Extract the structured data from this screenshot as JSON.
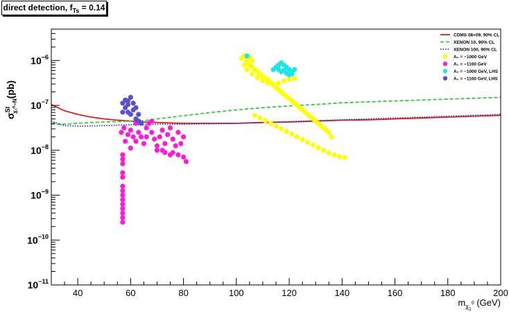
{
  "chart_data": {
    "type": "scatter",
    "title_main": "direct detection, f",
    "title_sub": "Ts",
    "title_tail": " = 0.14",
    "xlabel_main": "m",
    "xlabel_sub1": "χ",
    "xlabel_sub2": "1",
    "xlabel_sup": "0",
    "xlabel_tail": " (GeV)",
    "ylabel_main": "σ",
    "ylabel_sup": "SI",
    "ylabel_sub": "χ₁⁰−N",
    "ylabel_tail": "(pb)",
    "xlim": [
      30,
      200
    ],
    "ylim_log10": [
      -11,
      -5.3
    ],
    "x_ticks": [
      40,
      60,
      80,
      100,
      120,
      140,
      160,
      180,
      200
    ],
    "y_tick_labels": [
      {
        "base": "10",
        "exp": "−6",
        "value": -6
      },
      {
        "base": "10",
        "exp": "−7",
        "value": -7
      },
      {
        "base": "10",
        "exp": "−8",
        "value": -8
      },
      {
        "base": "10",
        "exp": "−9",
        "value": -9
      },
      {
        "base": "10",
        "exp": "−10",
        "value": -10
      },
      {
        "base": "10",
        "exp": "−11",
        "value": -11
      }
    ],
    "y_scale": "log",
    "grid": false,
    "legend_placement": "top-right",
    "series": [
      {
        "name": "CDMS 08+09, 90% CL",
        "kind": "line",
        "style": "solid",
        "color": "#e11a1a",
        "x": [
          30,
          35,
          40,
          45,
          50,
          55,
          60,
          65,
          70,
          80,
          90,
          100,
          110,
          120,
          130,
          140,
          150,
          160,
          170,
          180,
          190,
          200
        ],
        "log10y": [
          -6.98,
          -7.12,
          -7.2,
          -7.26,
          -7.3,
          -7.33,
          -7.35,
          -7.37,
          -7.38,
          -7.4,
          -7.4,
          -7.4,
          -7.38,
          -7.37,
          -7.35,
          -7.33,
          -7.32,
          -7.3,
          -7.28,
          -7.26,
          -7.24,
          -7.22
        ]
      },
      {
        "name": "XENON 10, 90% CL",
        "kind": "line",
        "style": "dashed",
        "color": "#2ecc2e",
        "x": [
          30,
          35,
          40,
          45,
          50,
          55,
          60,
          65,
          70,
          80,
          90,
          100,
          110,
          120,
          130,
          140,
          150,
          160,
          170,
          180,
          190,
          200
        ],
        "log10y": [
          -7.42,
          -7.42,
          -7.4,
          -7.38,
          -7.37,
          -7.36,
          -7.35,
          -7.34,
          -7.3,
          -7.23,
          -7.16,
          -7.1,
          -7.05,
          -7.01,
          -6.98,
          -6.94,
          -6.92,
          -6.9,
          -6.88,
          -6.86,
          -6.84,
          -6.82
        ]
      },
      {
        "name": "XENON 100, 90% CL",
        "kind": "line",
        "style": "dotted",
        "color": "#3333cc",
        "x": [
          30,
          35,
          40,
          45,
          50,
          55,
          60,
          65,
          70,
          80,
          90,
          100,
          110,
          120,
          130,
          140,
          150,
          160,
          170,
          180,
          190,
          200
        ],
        "log10y": [
          -7.35,
          -7.45,
          -7.46,
          -7.46,
          -7.45,
          -7.44,
          -7.43,
          -7.43,
          -7.42,
          -7.42,
          -7.41,
          -7.4,
          -7.38,
          -7.36,
          -7.34,
          -7.32,
          -7.3,
          -7.28,
          -7.26,
          -7.24,
          -7.22,
          -7.2
        ]
      },
      {
        "name": "A₀ = −1000 GeV",
        "kind": "points",
        "color": "#ffff00",
        "points": [
          [
            103,
            -5.9
          ],
          [
            104,
            -6.0
          ],
          [
            105,
            -6.1
          ],
          [
            107,
            -6.2
          ],
          [
            109,
            -6.3
          ],
          [
            111,
            -6.4
          ],
          [
            113,
            -6.5
          ],
          [
            115,
            -6.6
          ],
          [
            117,
            -6.7
          ],
          [
            119,
            -6.8
          ],
          [
            121,
            -6.9
          ],
          [
            123,
            -7.0
          ],
          [
            125,
            -7.1
          ],
          [
            127,
            -7.2
          ],
          [
            129,
            -7.3
          ],
          [
            131,
            -7.4
          ],
          [
            133,
            -7.5
          ],
          [
            135,
            -7.6
          ],
          [
            136,
            -7.7
          ],
          [
            104,
            -6.05
          ],
          [
            106,
            -6.15
          ],
          [
            108,
            -6.25
          ],
          [
            110,
            -6.35
          ],
          [
            112,
            -6.45
          ],
          [
            114,
            -6.55
          ],
          [
            116,
            -6.65
          ],
          [
            118,
            -6.75
          ],
          [
            120,
            -6.85
          ],
          [
            122,
            -6.95
          ],
          [
            124,
            -7.05
          ],
          [
            126,
            -7.15
          ],
          [
            128,
            -7.25
          ],
          [
            130,
            -7.35
          ],
          [
            132,
            -7.45
          ],
          [
            134,
            -7.55
          ],
          [
            107,
            -7.22
          ],
          [
            109,
            -7.28
          ],
          [
            111,
            -7.34
          ],
          [
            113,
            -7.4
          ],
          [
            115,
            -7.46
          ],
          [
            117,
            -7.52
          ],
          [
            119,
            -7.58
          ],
          [
            121,
            -7.64
          ],
          [
            123,
            -7.7
          ],
          [
            125,
            -7.76
          ],
          [
            127,
            -7.82
          ],
          [
            129,
            -7.88
          ],
          [
            131,
            -7.94
          ],
          [
            133,
            -8.0
          ],
          [
            135,
            -8.06
          ],
          [
            137,
            -8.1
          ],
          [
            139,
            -8.14
          ],
          [
            141,
            -8.16
          ],
          [
            104,
            -6.2
          ],
          [
            106,
            -6.3
          ],
          [
            108,
            -6.38
          ],
          [
            110,
            -6.45
          ],
          [
            112,
            -6.5
          ],
          [
            114,
            -6.52
          ],
          [
            116,
            -6.5
          ],
          [
            118,
            -6.45
          ],
          [
            120,
            -6.42
          ],
          [
            122,
            -6.4
          ],
          [
            110,
            -6.4
          ],
          [
            112,
            -6.42
          ],
          [
            103,
            -6.1
          ],
          [
            102,
            -5.95
          ],
          [
            105,
            -5.92
          ],
          [
            106,
            -6.0
          ]
        ]
      },
      {
        "name": "A₀ = −1100 GeV",
        "kind": "points",
        "color": "#ff1ad9",
        "points": [
          [
            57,
            -9.6
          ],
          [
            57,
            -9.5
          ],
          [
            57,
            -9.4
          ],
          [
            57,
            -9.3
          ],
          [
            57,
            -9.2
          ],
          [
            57,
            -9.1
          ],
          [
            57,
            -9.0
          ],
          [
            57,
            -8.9
          ],
          [
            57,
            -8.8
          ],
          [
            57,
            -8.6
          ],
          [
            57,
            -8.5
          ],
          [
            57,
            -8.3
          ],
          [
            57,
            -8.2
          ],
          [
            57,
            -8.1
          ],
          [
            56.5,
            -7.6
          ],
          [
            57.5,
            -7.5
          ],
          [
            59,
            -7.65
          ],
          [
            60,
            -7.55
          ],
          [
            61,
            -7.7
          ],
          [
            58,
            -7.8
          ],
          [
            60,
            -7.95
          ],
          [
            62,
            -7.8
          ],
          [
            63,
            -7.6
          ],
          [
            64,
            -7.7
          ],
          [
            65,
            -7.85
          ],
          [
            66,
            -7.5
          ],
          [
            67,
            -7.4
          ],
          [
            68,
            -7.35
          ],
          [
            68,
            -7.6
          ],
          [
            69,
            -7.75
          ],
          [
            70,
            -7.9
          ],
          [
            71,
            -7.7
          ],
          [
            72,
            -7.55
          ],
          [
            72,
            -8.0
          ],
          [
            73,
            -7.85
          ],
          [
            74,
            -7.65
          ],
          [
            75,
            -7.5
          ],
          [
            76,
            -7.75
          ],
          [
            76,
            -8.05
          ],
          [
            77,
            -7.9
          ],
          [
            78,
            -7.6
          ],
          [
            78,
            -8.1
          ],
          [
            79,
            -7.85
          ],
          [
            80,
            -7.7
          ],
          [
            80,
            -8.15
          ],
          [
            81,
            -8.25
          ],
          [
            73,
            -8.05
          ],
          [
            75,
            -8.1
          ],
          [
            70,
            -8.0
          ],
          [
            66,
            -7.7
          ],
          [
            62,
            -7.4
          ]
        ]
      },
      {
        "name": "A₀ = −1000 GeV, LHS",
        "kind": "points",
        "color": "#1ae6e6",
        "points": [
          [
            104,
            -5.9
          ],
          [
            115,
            -6.15
          ],
          [
            116,
            -6.1
          ],
          [
            117,
            -6.05
          ],
          [
            118,
            -6.1
          ],
          [
            119,
            -6.15
          ],
          [
            120,
            -6.2
          ],
          [
            121,
            -6.3
          ],
          [
            116,
            -6.2
          ],
          [
            118,
            -6.22
          ],
          [
            117,
            -6.25
          ],
          [
            119,
            -6.28
          ],
          [
            120,
            -6.32
          ],
          [
            121,
            -6.25
          ],
          [
            122,
            -6.2
          ],
          [
            114,
            -6.2
          ]
        ]
      },
      {
        "name": "A₀ = −1100 GeV, LHS",
        "kind": "points",
        "color": "#5a4fd0",
        "points": [
          [
            57,
            -6.95
          ],
          [
            58,
            -6.88
          ],
          [
            59,
            -6.9
          ],
          [
            60,
            -6.82
          ],
          [
            61,
            -6.95
          ],
          [
            62,
            -7.05
          ],
          [
            58,
            -7.05
          ],
          [
            59,
            -7.15
          ],
          [
            61,
            -7.1
          ],
          [
            63,
            -7.2
          ],
          [
            60,
            -7.2
          ],
          [
            57,
            -7.15
          ],
          [
            62,
            -7.3
          ],
          [
            63,
            -7.35
          ],
          [
            64,
            -7.4
          ],
          [
            59,
            -6.98
          ]
        ]
      }
    ]
  }
}
